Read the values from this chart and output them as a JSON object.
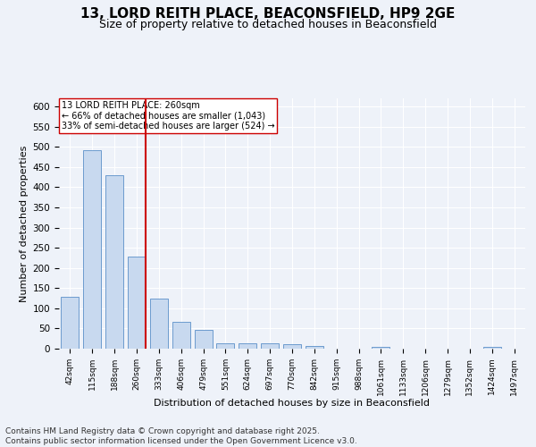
{
  "title": "13, LORD REITH PLACE, BEACONSFIELD, HP9 2GE",
  "subtitle": "Size of property relative to detached houses in Beaconsfield",
  "xlabel": "Distribution of detached houses by size in Beaconsfield",
  "ylabel": "Number of detached properties",
  "bar_labels": [
    "42sqm",
    "115sqm",
    "188sqm",
    "260sqm",
    "333sqm",
    "406sqm",
    "479sqm",
    "551sqm",
    "624sqm",
    "697sqm",
    "770sqm",
    "842sqm",
    "915sqm",
    "988sqm",
    "1061sqm",
    "1133sqm",
    "1206sqm",
    "1279sqm",
    "1352sqm",
    "1424sqm",
    "1497sqm"
  ],
  "bar_values": [
    128,
    492,
    430,
    228,
    124,
    67,
    46,
    14,
    14,
    14,
    10,
    7,
    0,
    0,
    5,
    0,
    0,
    0,
    0,
    4,
    0
  ],
  "bar_color": "#c8d9ef",
  "bar_edge_color": "#5b8fc9",
  "vline_x_index": 3,
  "vline_color": "#cc0000",
  "annotation_box_text": "13 LORD REITH PLACE: 260sqm\n← 66% of detached houses are smaller (1,043)\n33% of semi-detached houses are larger (524) →",
  "ylim": [
    0,
    620
  ],
  "yticks": [
    0,
    50,
    100,
    150,
    200,
    250,
    300,
    350,
    400,
    450,
    500,
    550,
    600
  ],
  "bg_color": "#eef2f9",
  "plot_bg_color": "#eef2f9",
  "grid_color": "#ffffff",
  "footer_text": "Contains HM Land Registry data © Crown copyright and database right 2025.\nContains public sector information licensed under the Open Government Licence v3.0.",
  "title_fontsize": 11,
  "subtitle_fontsize": 9,
  "annotation_fontsize": 7,
  "footer_fontsize": 6.5,
  "xlabel_fontsize": 8,
  "ylabel_fontsize": 8,
  "xtick_fontsize": 6.5,
  "ytick_fontsize": 7.5
}
